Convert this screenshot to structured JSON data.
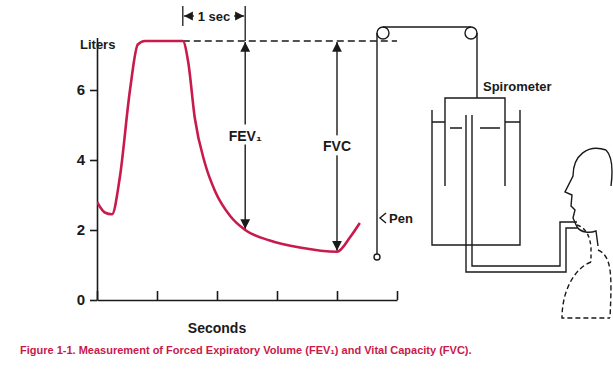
{
  "chart_data": {
    "type": "line",
    "title": "Figure 1-1. Measurement of Forced Expiratory Volume (FEV₁) and Vital Capacity (FVC).",
    "x_label": "Seconds",
    "y_label": "Liters",
    "x": [
      0,
      0.13,
      0.25,
      0.38,
      0.55,
      0.68,
      0.8,
      1.43,
      1.52,
      1.63,
      1.8,
      1.97,
      2.22,
      2.47,
      2.88,
      3.38,
      4.0,
      4.22,
      4.38
    ],
    "series": [
      {
        "color": "#c81a4b",
        "values": [
          2.8,
          2.5,
          2.45,
          3.5,
          6.0,
          7.3,
          7.4,
          7.4,
          6.8,
          5.2,
          3.9,
          3.1,
          2.4,
          2.0,
          1.7,
          1.5,
          1.38,
          1.8,
          2.2
        ]
      }
    ],
    "xlim": [
      0,
      5
    ],
    "xticks": [
      0,
      1,
      2,
      3,
      4,
      5
    ],
    "ylim": [
      0,
      7.5
    ],
    "yticks": [
      0,
      2,
      4,
      6
    ],
    "tick_labels": "y",
    "grid": false,
    "annotations": [
      {
        "text": "1 sec",
        "x1": 1.43,
        "x2": 2.47
      },
      {
        "text": "FEV₁",
        "x": 2.47,
        "y1": 7.4,
        "y2": 2.0
      },
      {
        "text": "FVC",
        "x": 4.0,
        "y1": 7.4,
        "y2": 1.38
      },
      {
        "y": 7.4,
        "x1": 1.43,
        "x2": 5,
        "line_style": "dashed"
      }
    ]
  },
  "apparatus": {
    "labels": {
      "spirometer": "Spirometer",
      "pen": "Pen"
    }
  }
}
